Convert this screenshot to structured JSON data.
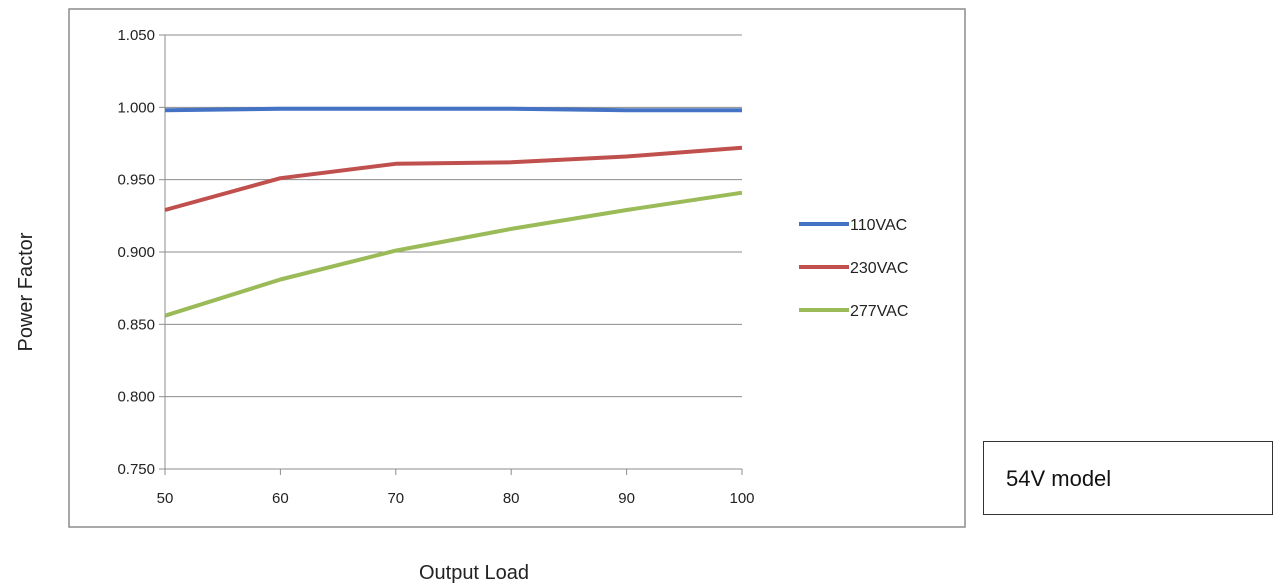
{
  "chart_data": {
    "type": "line",
    "title": "",
    "xlabel": "Output Load",
    "ylabel": "Power Factor",
    "x": [
      50,
      60,
      70,
      80,
      90,
      100
    ],
    "x_ticks": [
      "50",
      "60",
      "70",
      "80",
      "90",
      "100"
    ],
    "xlim": [
      50,
      100
    ],
    "ylim": [
      0.75,
      1.05
    ],
    "y_ticks": [
      "0.750",
      "0.800",
      "0.850",
      "0.900",
      "0.950",
      "1.000",
      "1.050"
    ],
    "grid": "horizontal",
    "legend_position": "right",
    "series": [
      {
        "name": "110VAC",
        "color": "#4472c4",
        "values": [
          0.998,
          0.999,
          0.999,
          0.999,
          0.998,
          0.998
        ]
      },
      {
        "name": "230VAC",
        "color": "#c0504d",
        "values": [
          0.929,
          0.951,
          0.961,
          0.962,
          0.966,
          0.972
        ]
      },
      {
        "name": "277VAC",
        "color": "#9bbb59",
        "values": [
          0.856,
          0.881,
          0.901,
          0.916,
          0.929,
          0.941
        ]
      }
    ]
  },
  "annotation": {
    "model_label": "54V model"
  }
}
